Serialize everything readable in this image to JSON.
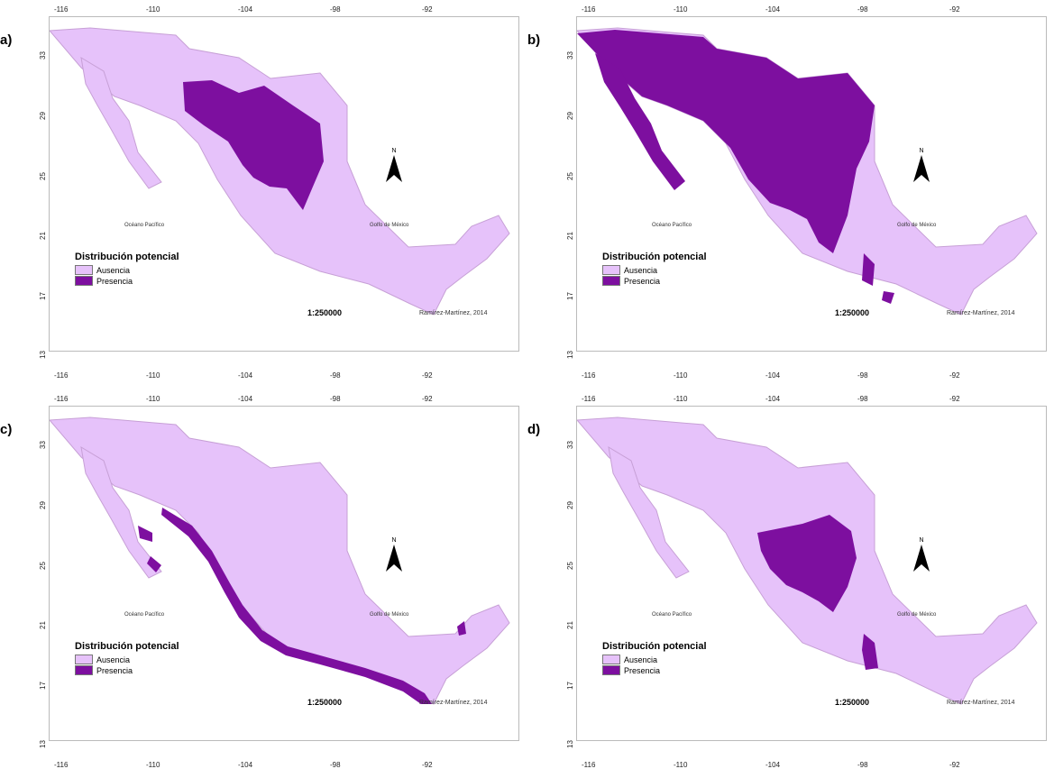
{
  "colors": {
    "ausencia": "#e6c2fa",
    "presencia": "#7d0f9f",
    "border": "#c7a0d6"
  },
  "panels": [
    {
      "letter": "a)",
      "ocean_label": "Océano Pacífico",
      "gulf_label": "Golfo de México",
      "north_label": "N",
      "legend_title": "Distribución potencial",
      "legend_items": [
        "Ausencia",
        "Presencia"
      ],
      "scale": "1:250000",
      "credit": "Ramírez-Martínez, 2014"
    },
    {
      "letter": "b)",
      "ocean_label": "Océano Pacífico",
      "gulf_label": "Golfo de México",
      "north_label": "N",
      "legend_title": "Distribución potencial",
      "legend_items": [
        "Ausencia",
        "Presencia"
      ],
      "scale": "1:250000",
      "credit": "Ramírez-Martínez, 2014"
    },
    {
      "letter": "c)",
      "ocean_label": "Océano Pacífico",
      "gulf_label": "Golfo de México",
      "north_label": "N",
      "legend_title": "Distribución potencial",
      "legend_items": [
        "Ausencia",
        "Presencia"
      ],
      "scale": "1:250000",
      "credit": "Ramírez-Martínez, 2014"
    },
    {
      "letter": "d)",
      "ocean_label": "Océano Pacífico",
      "gulf_label": "Golfo de México",
      "north_label": "N",
      "legend_title": "Distribución potencial",
      "legend_items": [
        "Ausencia",
        "Presencia"
      ],
      "scale": "1:250000",
      "credit": "Ramírez-Martínez, 2014"
    }
  ],
  "longitude_ticks": [
    "-116",
    "-110",
    "-104",
    "-98",
    "-92"
  ],
  "latitude_ticks": [
    "33",
    "29",
    "25",
    "21",
    "17",
    "13"
  ]
}
